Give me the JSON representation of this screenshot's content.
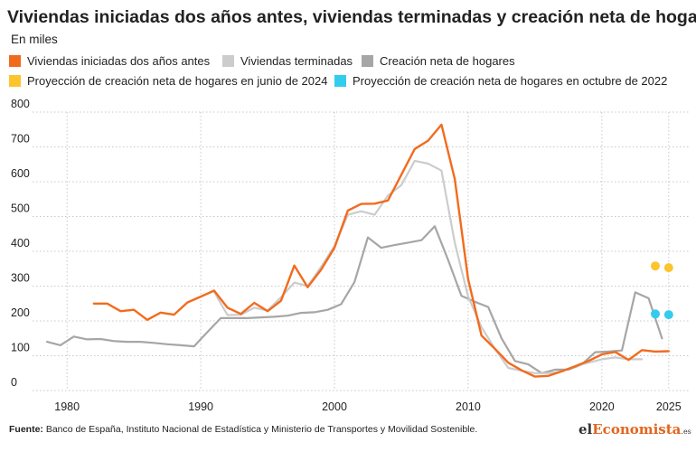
{
  "title": "Viviendas iniciadas dos años antes, viviendas terminadas y creación neta de hogares",
  "subtitle": "En miles",
  "footer": {
    "label": "Fuente:",
    "text": " Banco de España, Instituto Nacional de Estadística y Ministerio de Transportes y Movilidad Sostenible."
  },
  "brand": {
    "part1": "el",
    "part2": "Economista",
    "part3": ".es"
  },
  "colors": {
    "iniciadas": "#f26b1d",
    "terminadas": "#cccccc",
    "hogares": "#a6a6a6",
    "proy2024": "#fcc52e",
    "proy2022": "#33ccee"
  },
  "chart_data": {
    "type": "line",
    "xlim": [
      1978.5,
      2026.5
    ],
    "ylim": [
      0,
      800
    ],
    "x_ticks": [
      1980,
      1990,
      2000,
      2010,
      2020,
      2025
    ],
    "y_ticks": [
      0,
      100,
      200,
      300,
      400,
      500,
      600,
      700,
      800
    ],
    "grid": true,
    "legend_position": "top",
    "series": [
      {
        "key": "iniciadas",
        "name": "Viviendas iniciadas dos años antes",
        "kind": "line",
        "color": "#f26b1d",
        "x": [
          1982,
          1983,
          1984,
          1985,
          1986,
          1987,
          1988,
          1989,
          1990,
          1991,
          1992,
          1993,
          1994,
          1995,
          1996,
          1997,
          1998,
          1999,
          2000,
          2001,
          2002,
          2003,
          2004,
          2005,
          2006,
          2007,
          2008,
          2009,
          2010,
          2011,
          2012,
          2013,
          2014,
          2015,
          2016,
          2017,
          2018,
          2019,
          2020,
          2021,
          2022,
          2023,
          2024,
          2025
        ],
        "y": [
          250,
          250,
          228,
          232,
          203,
          224,
          218,
          253,
          270,
          287,
          238,
          220,
          252,
          228,
          258,
          359,
          297,
          347,
          410,
          517,
          536,
          537,
          546,
          620,
          694,
          718,
          764,
          608,
          320,
          158,
          120,
          80,
          58,
          40,
          42,
          55,
          70,
          85,
          104,
          111,
          88,
          116,
          112,
          113
        ]
      },
      {
        "key": "terminadas",
        "name": "Viviendas terminadas",
        "kind": "line",
        "color": "#cccccc",
        "x": [
          1991,
          1992,
          1993,
          1994,
          1995,
          1996,
          1997,
          1998,
          1999,
          2000,
          2001,
          2002,
          2003,
          2004,
          2005,
          2006,
          2007,
          2008,
          2009,
          2010,
          2011,
          2012,
          2013,
          2014,
          2015,
          2016,
          2017,
          2018,
          2019,
          2020,
          2021,
          2022,
          2023
        ],
        "y": [
          283,
          217,
          218,
          238,
          230,
          268,
          310,
          300,
          355,
          415,
          505,
          515,
          505,
          560,
          590,
          660,
          652,
          632,
          425,
          270,
          182,
          120,
          65,
          57,
          50,
          50,
          55,
          70,
          80,
          90,
          95,
          90,
          90
        ]
      },
      {
        "key": "hogares",
        "name": "Creación neta de hogares",
        "kind": "line",
        "color": "#a6a6a6",
        "x": [
          1978.5,
          1979.5,
          1980.5,
          1981.5,
          1982.5,
          1983.5,
          1984.5,
          1985.5,
          1986.5,
          1987.5,
          1988.5,
          1989.5,
          1990.5,
          1991.5,
          1992.5,
          1993.5,
          1994.5,
          1995.5,
          1996.5,
          1997.5,
          1998.5,
          1999.5,
          2000.5,
          2001.5,
          2002.5,
          2003.5,
          2004.5,
          2005.5,
          2006.5,
          2007.5,
          2008.5,
          2009.5,
          2010.5,
          2011.5,
          2012.5,
          2013.5,
          2014.5,
          2015.5,
          2016.5,
          2017.5,
          2018.5,
          2019.5,
          2020.5,
          2021.5,
          2022.5,
          2023.5,
          2024.5
        ],
        "y": [
          140,
          130,
          155,
          147,
          148,
          142,
          140,
          140,
          137,
          133,
          130,
          127,
          168,
          208,
          208,
          208,
          210,
          212,
          215,
          223,
          225,
          232,
          248,
          312,
          440,
          410,
          418,
          425,
          432,
          472,
          375,
          272,
          255,
          240,
          150,
          85,
          75,
          50,
          60,
          60,
          75,
          110,
          112,
          115,
          282,
          265,
          150
        ]
      },
      {
        "key": "proy2024",
        "name": "Proyección de creación neta de hogares en junio de 2024",
        "kind": "dots",
        "color": "#fcc52e",
        "x": [
          2024,
          2025
        ],
        "y": [
          358,
          353
        ]
      },
      {
        "key": "proy2022",
        "name": "Proyección de creación neta de hogares en octubre de 2022",
        "kind": "dots",
        "color": "#33ccee",
        "x": [
          2024,
          2025
        ],
        "y": [
          220,
          218
        ]
      }
    ]
  }
}
